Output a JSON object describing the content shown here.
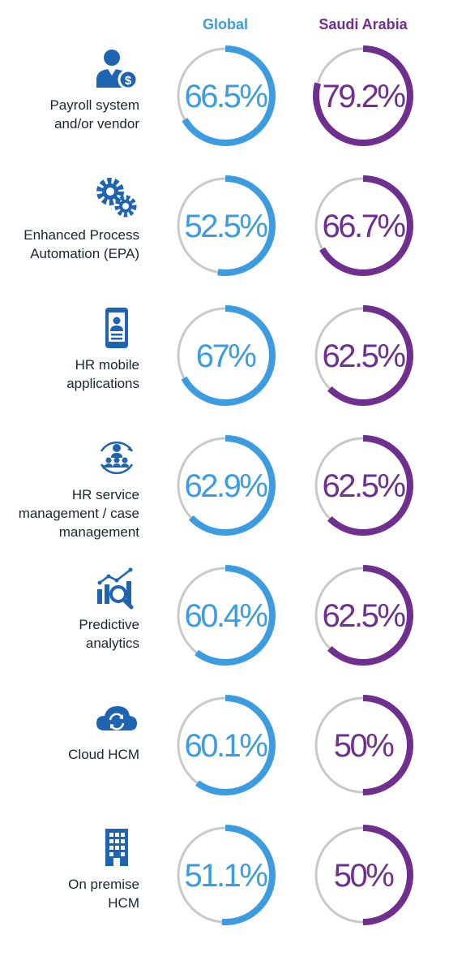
{
  "chart_data": {
    "type": "radial-progress",
    "series": [
      {
        "name": "Global",
        "color": "#3d9be0",
        "values": [
          66.5,
          52.5,
          67,
          62.9,
          60.4,
          60.1,
          51.1
        ],
        "labels": [
          "66.5%",
          "52.5%",
          "67%",
          "62.9%",
          "60.4%",
          "60.1%",
          "51.1%"
        ]
      },
      {
        "name": "Saudi Arabia",
        "color": "#6e2f8f",
        "values": [
          79.2,
          66.7,
          62.5,
          62.5,
          62.5,
          50,
          50
        ],
        "labels": [
          "79.2%",
          "66.7%",
          "62.5%",
          "62.5%",
          "62.5%",
          "50%",
          "50%"
        ]
      }
    ],
    "categories": [
      {
        "label": "Payroll system\nand/or vendor",
        "icon": "payroll-user-dollar-icon"
      },
      {
        "label": "Enhanced Process\nAutomation (EPA)",
        "icon": "gears-icon"
      },
      {
        "label": "HR mobile\napplications",
        "icon": "mobile-phone-icon"
      },
      {
        "label": "HR service\nmanagement / case\nmanagement",
        "icon": "people-cycle-icon"
      },
      {
        "label": "Predictive\nanalytics",
        "icon": "analytics-magnifier-icon"
      },
      {
        "label": "Cloud HCM",
        "icon": "cloud-sync-icon"
      },
      {
        "label": "On premise\nHCM",
        "icon": "office-building-icon"
      }
    ],
    "track_color": "#c9c9c9",
    "icon_color": "#1f64b0"
  }
}
